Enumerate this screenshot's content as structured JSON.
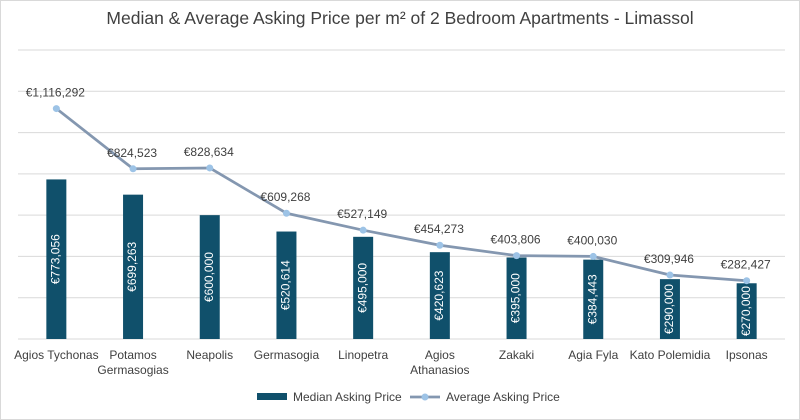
{
  "chart_data": {
    "type": "bar",
    "title": "Median & Average Asking Price per m² of 2 Bedroom Apartments - Limassol",
    "categories": [
      [
        "Agios Tychonas"
      ],
      [
        "Potamos",
        "Germasogias"
      ],
      [
        "Neapolis"
      ],
      [
        "Germasogia"
      ],
      [
        "Linopetra"
      ],
      [
        "Agios",
        "Athanasios"
      ],
      [
        "Zakaki"
      ],
      [
        "Agia Fyla"
      ],
      [
        "Kato Polemidia"
      ],
      [
        "Ipsonas"
      ]
    ],
    "ylim": [
      0,
      1400000
    ],
    "grid": true,
    "legend_position": "bottom",
    "series": [
      {
        "name": "Median Asking Price",
        "type": "bar",
        "color": "#10506b",
        "values": [
          773056,
          699263,
          600000,
          520614,
          495000,
          420623,
          395000,
          384443,
          290000,
          270000
        ],
        "labels": [
          "€773,056",
          "€699,263",
          "€600,000",
          "€520,614",
          "€495,000",
          "€420,623",
          "€395,000",
          "€384,443",
          "€290,000",
          "€270,000"
        ]
      },
      {
        "name": "Average Asking Price",
        "type": "line",
        "color": "#8497b0",
        "marker_color": "#9dc3e6",
        "values": [
          1116292,
          824523,
          828634,
          609268,
          527149,
          454273,
          403806,
          400030,
          309946,
          282427
        ],
        "labels": [
          "€1,116,292",
          "€824,523",
          "€828,634",
          "€609,268",
          "€527,149",
          "€454,273",
          "€403,806",
          "€400,030",
          "€309,946",
          "€282,427"
        ]
      }
    ]
  }
}
